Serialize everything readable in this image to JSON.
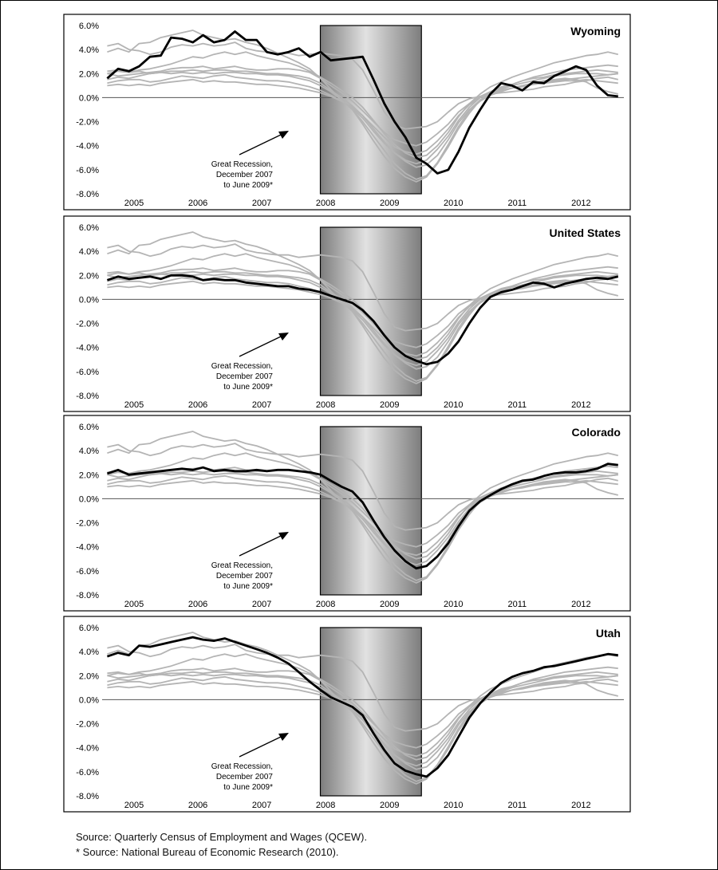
{
  "source": {
    "line1": "Source: Quarterly Census of Employment and Wages (QCEW).",
    "line2": "* Source: National Bureau of Economic Research (2010)."
  },
  "colors": {
    "highlight": "#000000",
    "background_lines": "#b4b4b4",
    "recession_shade_edge": "#7d7d7d",
    "recession_shade_center": "#e2e2e2",
    "frame": "#000000"
  },
  "chart_data": [
    {
      "type": "line",
      "title": "Wyoming",
      "x_tick_labels": [
        "2005",
        "2006",
        "2007",
        "2008",
        "2009",
        "2010",
        "2011",
        "2012"
      ],
      "y_tick_labels": [
        "6.0%",
        "4.0%",
        "2.0%",
        "0.0%",
        "-2.0%",
        "-4.0%",
        "-6.0%",
        "-8.0%"
      ],
      "xlim": [
        2004.5,
        2012.67
      ],
      "ylim": [
        -8,
        6
      ],
      "recession": {
        "start": 2007.917,
        "end": 2009.5
      },
      "annotation": [
        "Great Recession,",
        "December 2007",
        "to June 2009*"
      ],
      "highlight_series": {
        "name": "Wyoming",
        "x": [
          2004.58,
          2004.75,
          2004.92,
          2005.08,
          2005.25,
          2005.42,
          2005.58,
          2005.75,
          2005.92,
          2006.08,
          2006.25,
          2006.42,
          2006.58,
          2006.75,
          2006.92,
          2007.08,
          2007.25,
          2007.42,
          2007.58,
          2007.75,
          2007.92,
          2008.08,
          2008.25,
          2008.42,
          2008.58,
          2008.75,
          2008.92,
          2009.08,
          2009.25,
          2009.42,
          2009.58,
          2009.75,
          2009.92,
          2010.08,
          2010.25,
          2010.42,
          2010.58,
          2010.75,
          2010.92,
          2011.08,
          2011.25,
          2011.42,
          2011.58,
          2011.75,
          2011.92,
          2012.08,
          2012.25,
          2012.42,
          2012.58
        ],
        "y": [
          1.6,
          2.4,
          2.2,
          2.6,
          3.4,
          3.5,
          5.0,
          4.9,
          4.6,
          5.2,
          4.6,
          4.8,
          5.5,
          4.8,
          4.8,
          3.8,
          3.6,
          3.8,
          4.1,
          3.4,
          3.8,
          3.1,
          3.2,
          3.3,
          3.4,
          1.5,
          -0.5,
          -2.0,
          -3.3,
          -5.0,
          -5.5,
          -6.3,
          -6.0,
          -4.5,
          -2.5,
          -1.0,
          0.3,
          1.2,
          1.0,
          0.6,
          1.3,
          1.2,
          1.8,
          2.2,
          2.6,
          2.3,
          1.0,
          0.2,
          0.1
        ]
      }
    },
    {
      "type": "line",
      "title": "United States",
      "x_tick_labels": [
        "2005",
        "2006",
        "2007",
        "2008",
        "2009",
        "2010",
        "2011",
        "2012"
      ],
      "y_tick_labels": [
        "6.0%",
        "4.0%",
        "2.0%",
        "0.0%",
        "-2.0%",
        "-4.0%",
        "-6.0%",
        "-8.0%"
      ],
      "xlim": [
        2004.5,
        2012.67
      ],
      "ylim": [
        -8,
        6
      ],
      "recession": {
        "start": 2007.917,
        "end": 2009.5
      },
      "annotation": [
        "Great Recession,",
        "December 2007",
        "to June 2009*"
      ],
      "highlight_series": {
        "name": "United States",
        "x": [
          2004.58,
          2004.75,
          2004.92,
          2005.08,
          2005.25,
          2005.42,
          2005.58,
          2005.75,
          2005.92,
          2006.08,
          2006.25,
          2006.42,
          2006.58,
          2006.75,
          2006.92,
          2007.08,
          2007.25,
          2007.42,
          2007.58,
          2007.75,
          2007.92,
          2008.08,
          2008.25,
          2008.42,
          2008.58,
          2008.75,
          2008.92,
          2009.08,
          2009.25,
          2009.42,
          2009.58,
          2009.75,
          2009.92,
          2010.08,
          2010.25,
          2010.42,
          2010.58,
          2010.75,
          2010.92,
          2011.08,
          2011.25,
          2011.42,
          2011.58,
          2011.75,
          2011.92,
          2012.08,
          2012.25,
          2012.42,
          2012.58
        ],
        "y": [
          1.6,
          1.9,
          1.7,
          1.8,
          1.9,
          1.7,
          2.0,
          2.0,
          1.9,
          1.6,
          1.7,
          1.6,
          1.6,
          1.4,
          1.3,
          1.2,
          1.1,
          1.1,
          0.9,
          0.8,
          0.6,
          0.3,
          0.0,
          -0.3,
          -0.9,
          -1.8,
          -3.0,
          -4.0,
          -4.7,
          -5.1,
          -5.4,
          -5.2,
          -4.5,
          -3.5,
          -2.0,
          -0.7,
          0.2,
          0.6,
          0.8,
          1.1,
          1.4,
          1.3,
          1.0,
          1.3,
          1.5,
          1.7,
          1.8,
          1.7,
          1.9
        ]
      }
    },
    {
      "type": "line",
      "title": "Colorado",
      "x_tick_labels": [
        "2005",
        "2006",
        "2007",
        "2008",
        "2009",
        "2010",
        "2011",
        "2012"
      ],
      "y_tick_labels": [
        "6.0%",
        "4.0%",
        "2.0%",
        "0.0%",
        "-2.0%",
        "-4.0%",
        "-6.0%",
        "-8.0%"
      ],
      "xlim": [
        2004.5,
        2012.67
      ],
      "ylim": [
        -8,
        6
      ],
      "recession": {
        "start": 2007.917,
        "end": 2009.5
      },
      "annotation": [
        "Great Recession,",
        "December 2007",
        "to June 2009*"
      ],
      "highlight_series": {
        "name": "Colorado",
        "x": [
          2004.58,
          2004.75,
          2004.92,
          2005.08,
          2005.25,
          2005.42,
          2005.58,
          2005.75,
          2005.92,
          2006.08,
          2006.25,
          2006.42,
          2006.58,
          2006.75,
          2006.92,
          2007.08,
          2007.25,
          2007.42,
          2007.58,
          2007.75,
          2007.92,
          2008.08,
          2008.25,
          2008.42,
          2008.58,
          2008.75,
          2008.92,
          2009.08,
          2009.25,
          2009.42,
          2009.58,
          2009.75,
          2009.92,
          2010.08,
          2010.25,
          2010.42,
          2010.58,
          2010.75,
          2010.92,
          2011.08,
          2011.25,
          2011.42,
          2011.58,
          2011.75,
          2011.92,
          2012.08,
          2012.25,
          2012.42,
          2012.58
        ],
        "y": [
          2.1,
          2.4,
          2.0,
          2.1,
          2.2,
          2.3,
          2.4,
          2.5,
          2.4,
          2.6,
          2.3,
          2.4,
          2.3,
          2.3,
          2.4,
          2.3,
          2.4,
          2.4,
          2.3,
          2.2,
          2.0,
          1.5,
          1.0,
          0.6,
          -0.3,
          -1.8,
          -3.2,
          -4.3,
          -5.2,
          -5.8,
          -5.6,
          -4.8,
          -3.7,
          -2.3,
          -1.0,
          -0.2,
          0.3,
          0.8,
          1.2,
          1.5,
          1.6,
          1.9,
          2.1,
          2.2,
          2.2,
          2.3,
          2.5,
          2.9,
          2.8
        ]
      }
    },
    {
      "type": "line",
      "title": "Utah",
      "x_tick_labels": [
        "2005",
        "2006",
        "2007",
        "2008",
        "2009",
        "2010",
        "2011",
        "2012"
      ],
      "y_tick_labels": [
        "6.0%",
        "4.0%",
        "2.0%",
        "0.0%",
        "-2.0%",
        "-4.0%",
        "-6.0%",
        "-8.0%"
      ],
      "xlim": [
        2004.5,
        2012.67
      ],
      "ylim": [
        -8,
        6
      ],
      "recession": {
        "start": 2007.917,
        "end": 2009.5
      },
      "annotation": [
        "Great Recession,",
        "December 2007",
        "to June 2009*"
      ],
      "highlight_series": {
        "name": "Utah",
        "x": [
          2004.58,
          2004.75,
          2004.92,
          2005.08,
          2005.25,
          2005.42,
          2005.58,
          2005.75,
          2005.92,
          2006.08,
          2006.25,
          2006.42,
          2006.58,
          2006.75,
          2006.92,
          2007.08,
          2007.25,
          2007.42,
          2007.58,
          2007.75,
          2007.92,
          2008.08,
          2008.25,
          2008.42,
          2008.58,
          2008.75,
          2008.92,
          2009.08,
          2009.25,
          2009.42,
          2009.58,
          2009.75,
          2009.92,
          2010.08,
          2010.25,
          2010.42,
          2010.58,
          2010.75,
          2010.92,
          2011.08,
          2011.25,
          2011.42,
          2011.58,
          2011.75,
          2011.92,
          2012.08,
          2012.25,
          2012.42,
          2012.58
        ],
        "y": [
          3.6,
          3.9,
          3.7,
          4.5,
          4.4,
          4.6,
          4.8,
          5.0,
          5.2,
          5.0,
          4.9,
          5.1,
          4.8,
          4.5,
          4.2,
          3.9,
          3.5,
          3.0,
          2.3,
          1.5,
          0.8,
          0.2,
          -0.2,
          -0.6,
          -1.3,
          -2.8,
          -4.2,
          -5.3,
          -5.9,
          -6.2,
          -6.4,
          -5.7,
          -4.6,
          -3.1,
          -1.5,
          -0.3,
          0.6,
          1.4,
          1.9,
          2.2,
          2.4,
          2.7,
          2.8,
          3.0,
          3.2,
          3.4,
          3.6,
          3.8,
          3.7
        ]
      }
    }
  ],
  "background_series": [
    [
      1.2,
      1.4,
      1.5,
      1.5,
      1.3,
      1.4,
      1.6,
      1.8,
      1.7,
      1.6,
      1.8,
      1.9,
      1.7,
      1.6,
      1.5,
      1.4,
      1.4,
      1.3,
      1.1,
      0.9,
      0.6,
      0.2,
      -0.3,
      -0.9,
      -1.7,
      -2.8,
      -3.8,
      -4.6,
      -5.2,
      -5.5,
      -5.2,
      -4.3,
      -3.2,
      -1.9,
      -0.8,
      0.0,
      0.4,
      0.6,
      0.8,
      0.9,
      1.1,
      1.2,
      1.3,
      1.4,
      1.4,
      1.5,
      1.4,
      1.3,
      1.2
    ],
    [
      3.8,
      4.1,
      3.8,
      4.5,
      4.6,
      5.0,
      5.2,
      5.4,
      5.6,
      5.2,
      5.0,
      4.8,
      4.9,
      4.6,
      4.4,
      4.1,
      3.7,
      3.3,
      2.9,
      2.4,
      1.6,
      0.7,
      -0.2,
      -1.0,
      -2.2,
      -3.6,
      -4.9,
      -5.9,
      -6.6,
      -7.0,
      -6.6,
      -5.5,
      -4.1,
      -2.6,
      -1.3,
      -0.2,
      0.4,
      0.8,
      1.1,
      1.4,
      1.7,
      1.9,
      2.1,
      2.3,
      2.4,
      2.5,
      2.6,
      2.7,
      2.6
    ],
    [
      2.0,
      2.2,
      2.1,
      2.3,
      2.4,
      2.6,
      2.8,
      3.1,
      3.4,
      3.3,
      3.6,
      3.8,
      3.6,
      3.8,
      3.5,
      3.3,
      3.1,
      2.9,
      2.6,
      2.2,
      1.7,
      1.2,
      0.6,
      0.0,
      -0.8,
      -1.9,
      -3.0,
      -3.9,
      -4.6,
      -5.0,
      -4.8,
      -4.0,
      -2.9,
      -1.6,
      -0.5,
      0.3,
      0.9,
      1.3,
      1.7,
      2.0,
      2.3,
      2.6,
      2.9,
      3.1,
      3.3,
      3.5,
      3.6,
      3.8,
      3.6
    ],
    [
      1.5,
      1.7,
      1.6,
      1.8,
      2.0,
      2.1,
      2.2,
      2.2,
      2.3,
      2.2,
      2.3,
      2.3,
      2.2,
      2.2,
      2.1,
      2.0,
      2.0,
      1.9,
      1.8,
      1.6,
      1.2,
      0.6,
      0.0,
      -0.7,
      -1.5,
      -2.6,
      -3.7,
      -4.6,
      -5.3,
      -5.8,
      -5.6,
      -4.8,
      -3.5,
      -2.1,
      -1.0,
      -0.2,
      0.3,
      0.7,
      1.0,
      1.2,
      1.4,
      1.6,
      1.8,
      1.9,
      2.0,
      2.0,
      2.0,
      1.9,
      2.0
    ],
    [
      4.3,
      4.5,
      4.0,
      3.9,
      3.6,
      3.8,
      4.2,
      4.4,
      4.3,
      4.5,
      4.3,
      4.4,
      4.6,
      4.1,
      3.9,
      3.8,
      3.7,
      3.7,
      3.5,
      3.6,
      3.7,
      3.6,
      3.5,
      3.2,
      2.3,
      0.6,
      -1.2,
      -2.3,
      -2.6,
      -2.5,
      -2.4,
      -2.0,
      -1.2,
      -0.5,
      -0.1,
      0.1,
      0.3,
      0.4,
      0.5,
      0.6,
      0.7,
      0.9,
      1.0,
      1.1,
      1.3,
      1.4,
      1.6,
      1.7,
      1.5
    ],
    [
      2.0,
      1.8,
      1.9,
      2.0,
      2.1,
      2.2,
      2.4,
      2.5,
      2.5,
      2.6,
      2.4,
      2.5,
      2.6,
      2.4,
      2.3,
      2.3,
      2.4,
      2.4,
      2.3,
      2.1,
      1.6,
      1.0,
      0.4,
      -0.3,
      -1.1,
      -2.0,
      -2.9,
      -3.5,
      -3.8,
      -4.0,
      -3.7,
      -3.0,
      -2.2,
      -1.2,
      -0.5,
      0.1,
      0.5,
      0.9,
      1.1,
      1.4,
      1.6,
      1.7,
      1.9,
      2.0,
      2.1,
      2.2,
      2.3,
      2.2,
      2.1
    ],
    [
      1.0,
      1.1,
      1.0,
      1.1,
      1.0,
      1.2,
      1.3,
      1.4,
      1.5,
      1.3,
      1.4,
      1.3,
      1.3,
      1.2,
      1.1,
      1.1,
      1.0,
      0.9,
      0.8,
      0.6,
      0.4,
      0.1,
      -0.3,
      -0.8,
      -1.5,
      -2.4,
      -3.3,
      -4.1,
      -4.5,
      -4.7,
      -4.4,
      -3.6,
      -2.6,
      -1.5,
      -0.6,
      0.0,
      0.3,
      0.6,
      0.8,
      1.0,
      1.2,
      1.4,
      1.5,
      1.6,
      1.5,
      1.3,
      0.8,
      0.5,
      0.3
    ],
    [
      2.2,
      2.3,
      2.1,
      2.2,
      2.0,
      2.1,
      2.0,
      2.1,
      2.0,
      2.1,
      2.0,
      2.1,
      2.1,
      2.0,
      2.0,
      1.9,
      1.9,
      1.8,
      1.6,
      1.4,
      1.0,
      0.5,
      -0.2,
      -1.0,
      -2.0,
      -3.2,
      -4.4,
      -5.5,
      -6.3,
      -6.8,
      -6.5,
      -5.4,
      -3.9,
      -2.4,
      -1.1,
      -0.3,
      0.2,
      0.5,
      0.8,
      1.0,
      1.1,
      1.3,
      1.4,
      1.5,
      1.6,
      1.7,
      1.8,
      1.9,
      2.0
    ]
  ]
}
